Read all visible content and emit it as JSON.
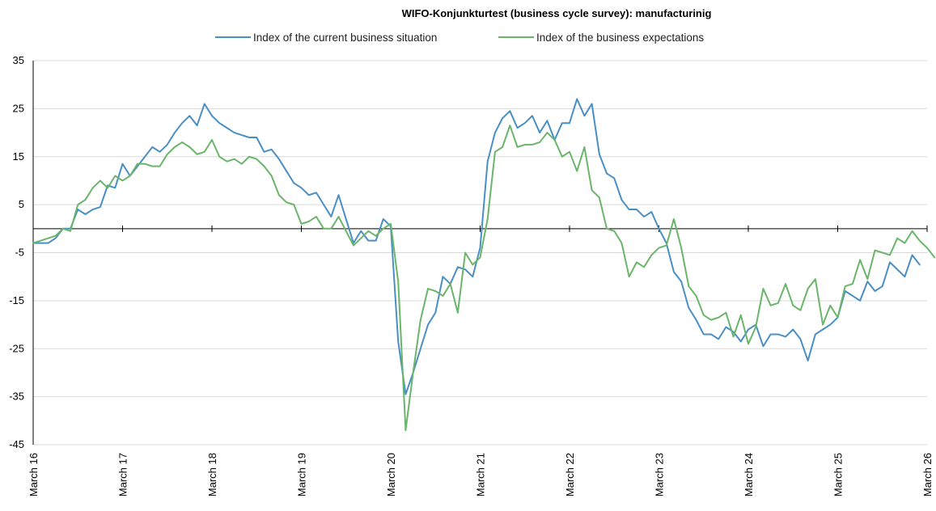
{
  "chart_data": {
    "type": "line",
    "title": "WIFO-Konjunkturtest (business cycle survey): manufacturinig",
    "ylim": [
      -45,
      35
    ],
    "yticks": [
      35,
      25,
      15,
      5,
      -5,
      -15,
      -25,
      -35,
      -45
    ],
    "xticks": [
      {
        "month": 0,
        "label": "March 16"
      },
      {
        "month": 12,
        "label": "March 17"
      },
      {
        "month": 24,
        "label": "March 18"
      },
      {
        "month": 36,
        "label": "March 19"
      },
      {
        "month": 48,
        "label": "March 20"
      },
      {
        "month": 60,
        "label": "March 21"
      },
      {
        "month": 72,
        "label": "March 22"
      },
      {
        "month": 84,
        "label": "March 23"
      },
      {
        "month": 96,
        "label": "March 24"
      },
      {
        "month": 108,
        "label": "March 25"
      },
      {
        "month": 120,
        "label": "March 26"
      }
    ],
    "x_month_offset_start": "March 16",
    "grid": "horizontal",
    "legend_position": "top",
    "series": [
      {
        "name": "Index of the current business situation",
        "color": "#4a8fc4",
        "values": [
          -3,
          -3,
          -3,
          -2,
          0,
          0,
          4,
          3,
          4,
          4.5,
          9,
          8.5,
          13.5,
          11,
          13,
          15,
          17,
          16,
          17.5,
          20,
          22,
          23.5,
          21.5,
          26,
          23.5,
          22,
          21,
          20,
          19.5,
          19,
          19,
          16,
          16.5,
          14.5,
          12,
          9.5,
          8.5,
          7,
          7.5,
          5,
          2.5,
          7,
          2,
          -3,
          -0.5,
          -2.5,
          -2.5,
          2,
          0.5,
          -23.5,
          -34.5,
          -30,
          -25,
          -20,
          -17.5,
          -10,
          -11.5,
          -8,
          -8.5,
          -10,
          -4,
          14,
          20,
          23,
          24.5,
          21,
          22,
          23.5,
          20,
          22.5,
          18.5,
          22,
          22,
          27,
          23.5,
          26,
          15.5,
          11.5,
          10.5,
          6,
          4,
          4,
          2.5,
          3.5,
          0,
          -3,
          -9,
          -11,
          -16.5,
          -19,
          -22,
          -22,
          -23,
          -20.5,
          -21.5,
          -23.5,
          -21,
          -20,
          -24.5,
          -22,
          -22,
          -22.5,
          -21,
          -23,
          -27.5,
          -22,
          -21,
          -20,
          -18.5,
          -13,
          -14,
          -15,
          -11,
          -13,
          -12,
          -7,
          -8.5,
          -10,
          -5.5,
          -7.5
        ]
      },
      {
        "name": "Index of the business expectations",
        "color": "#6ab56a",
        "values": [
          -3,
          -2.5,
          -2,
          -1.5,
          0,
          -0.5,
          5,
          6,
          8.5,
          10,
          8.5,
          11,
          10,
          11,
          13.5,
          13.5,
          13,
          13,
          15.5,
          17,
          18,
          17,
          15.5,
          16,
          18.5,
          15,
          14,
          14.5,
          13.5,
          15,
          14.5,
          13,
          11,
          7,
          5.5,
          5,
          1,
          1.5,
          2.5,
          0,
          0,
          2.5,
          -0.5,
          -3.5,
          -2,
          -0.5,
          -1.5,
          0,
          1,
          -11,
          -42,
          -30,
          -19,
          -12.5,
          -13,
          -14,
          -11.5,
          -17.5,
          -5,
          -7.5,
          -6,
          2,
          16,
          17,
          21.5,
          17,
          17.5,
          17.5,
          18,
          20,
          18.5,
          15,
          16,
          12,
          17,
          8,
          6.5,
          0,
          -0.5,
          -3,
          -10,
          -7,
          -8,
          -5.5,
          -4,
          -3.5,
          2,
          -4,
          -12,
          -14,
          -18,
          -19,
          -18.5,
          -17.5,
          -22.5,
          -18,
          -24,
          -20.5,
          -12.5,
          -16,
          -15.5,
          -11.5,
          -16,
          -17,
          -12.5,
          -10.5,
          -20,
          -16,
          -18.5,
          -12,
          -11.5,
          -6.5,
          -10.5,
          -4.5,
          -5,
          -5.5,
          -2,
          -3,
          -0.5,
          -2.5,
          -4,
          -6
        ]
      }
    ]
  }
}
